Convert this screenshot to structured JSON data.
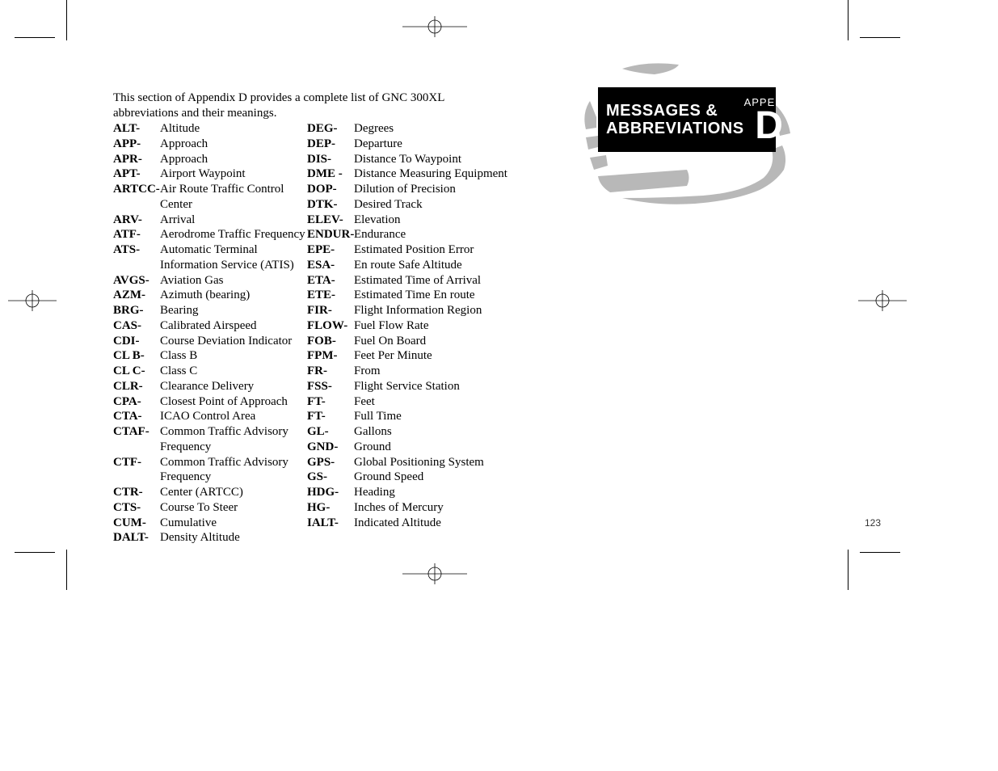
{
  "intro": "This section of Appendix D provides a complete list of GNC 300XL abbreviations and their meanings.",
  "page_number": "123",
  "sidebar": {
    "title_line1": "MESSAGES &",
    "title_line2": "ABBREVIATIONS",
    "appendix_label": "APPENDIX",
    "appendix_letter": "D",
    "box_bg": "#000000",
    "box_fg": "#ffffff",
    "globe_fill": "#b8b8b8"
  },
  "left_col": [
    {
      "a": "ALT-",
      "d": "Altitude"
    },
    {
      "a": "APP-",
      "d": "Approach"
    },
    {
      "a": "APR-",
      "d": "Approach"
    },
    {
      "a": "APT-",
      "d": "Airport Waypoint"
    },
    {
      "a": "ARTCC-",
      "d": "Air Route Traffic Control Center"
    },
    {
      "a": "ARV-",
      "d": "Arrival"
    },
    {
      "a": "ATF-",
      "d": "Aerodrome Traffic Frequency"
    },
    {
      "a": "ATS-",
      "d": "Automatic Terminal Information Service (ATIS)"
    },
    {
      "a": "AVGS-",
      "d": "Aviation Gas"
    },
    {
      "a": "AZM-",
      "d": "Azimuth (bearing)"
    },
    {
      "a": "BRG-",
      "d": "Bearing"
    },
    {
      "a": "CAS-",
      "d": "Calibrated Airspeed"
    },
    {
      "a": "CDI-",
      "d": "Course Deviation Indicator"
    },
    {
      "a": "CL B-",
      "d": "Class B"
    },
    {
      "a": "CL C-",
      "d": "Class C"
    },
    {
      "a": "CLR-",
      "d": "Clearance Delivery"
    },
    {
      "a": "CPA-",
      "d": "Closest Point of Approach"
    },
    {
      "a": "CTA-",
      "d": "ICAO Control Area"
    },
    {
      "a": "CTAF-",
      "d": "Common Traffic Advisory Frequency"
    },
    {
      "a": "CTF-",
      "d": "Common Traffic Advisory Frequency"
    },
    {
      "a": "CTR-",
      "d": "Center (ARTCC)"
    },
    {
      "a": "CTS-",
      "d": "Course To Steer"
    },
    {
      "a": "CUM-",
      "d": "Cumulative"
    },
    {
      "a": "DALT-",
      "d": "Density Altitude"
    }
  ],
  "right_col": [
    {
      "a": "DEG-",
      "d": "Degrees"
    },
    {
      "a": "DEP-",
      "d": "Departure"
    },
    {
      "a": "DIS-",
      "d": "Distance To Waypoint"
    },
    {
      "a": "DME -",
      "d": "Distance Measuring Equipment"
    },
    {
      "a": "DOP-",
      "d": "Dilution of Precision"
    },
    {
      "a": "DTK-",
      "d": "Desired Track"
    },
    {
      "a": "ELEV-",
      "d": "Elevation"
    },
    {
      "a": "ENDUR-",
      "d": "Endurance"
    },
    {
      "a": "EPE-",
      "d": "Estimated Position Error"
    },
    {
      "a": "ESA-",
      "d": "En route Safe Altitude"
    },
    {
      "a": "ETA-",
      "d": "Estimated Time of Arrival"
    },
    {
      "a": "ETE-",
      "d": "Estimated Time En route"
    },
    {
      "a": "FIR-",
      "d": "Flight Information Region"
    },
    {
      "a": "FLOW-",
      "d": "Fuel Flow Rate"
    },
    {
      "a": "FOB-",
      "d": "Fuel On Board"
    },
    {
      "a": "FPM-",
      "d": "Feet Per Minute"
    },
    {
      "a": "FR-",
      "d": "From"
    },
    {
      "a": "FSS-",
      "d": "Flight Service Station"
    },
    {
      "a": "FT-",
      "d": "Feet"
    },
    {
      "a": "FT-",
      "d": "Full Time"
    },
    {
      "a": "GL-",
      "d": "Gallons"
    },
    {
      "a": "GND-",
      "d": "Ground"
    },
    {
      "a": "GPS-",
      "d": "Global Positioning System"
    },
    {
      "a": "GS-",
      "d": "Ground Speed"
    },
    {
      "a": "HDG-",
      "d": "Heading"
    },
    {
      "a": "HG-",
      "d": "Inches of Mercury"
    },
    {
      "a": "IALT-",
      "d": "Indicated Altitude"
    }
  ]
}
